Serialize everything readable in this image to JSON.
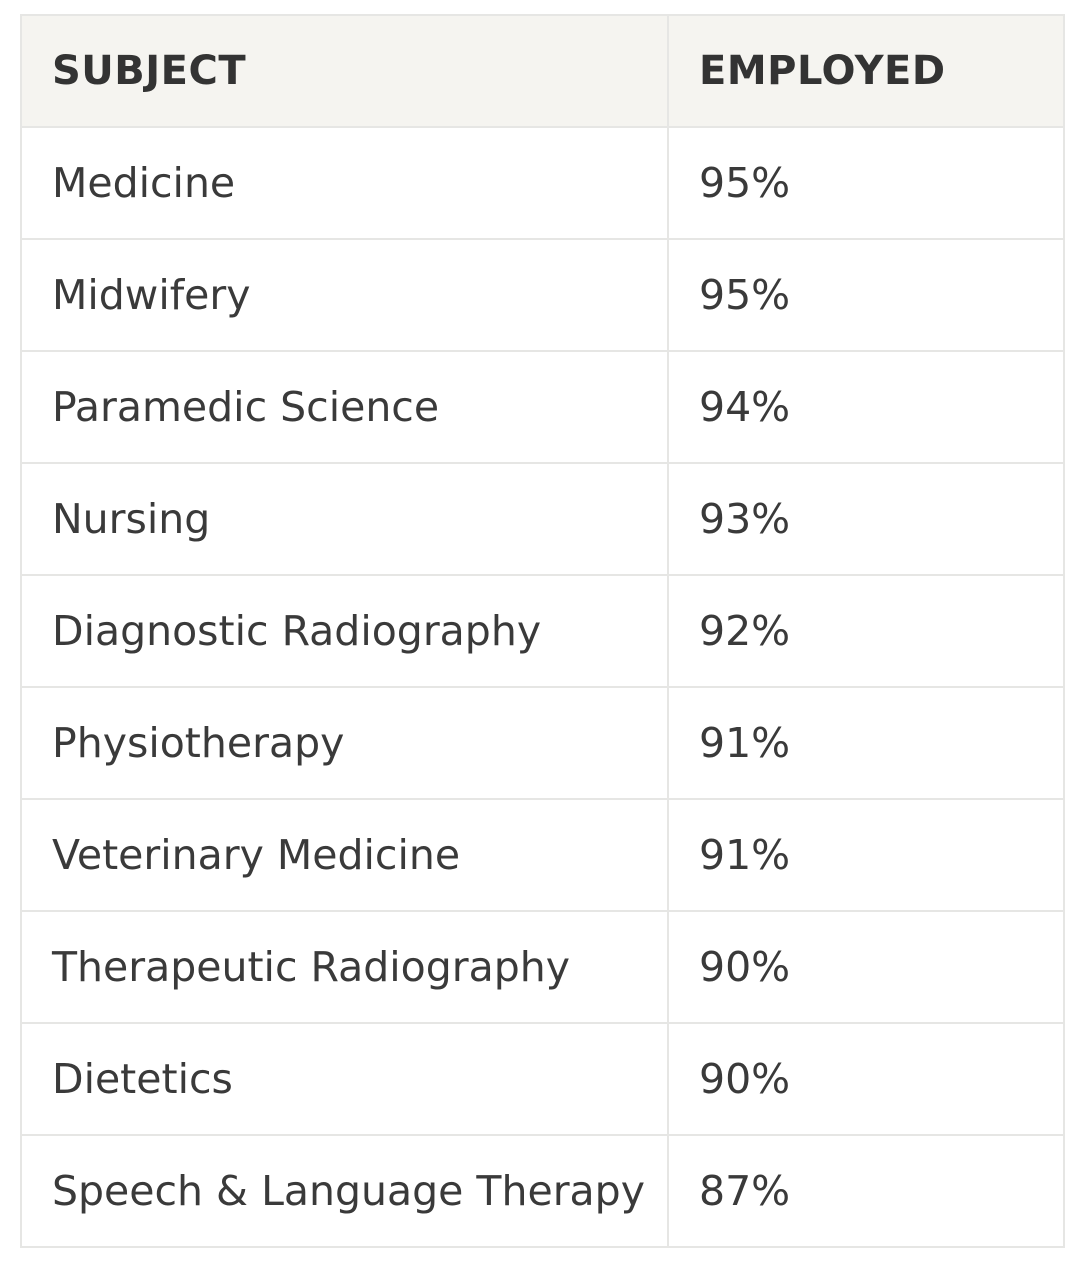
{
  "table": {
    "headers": [
      "SUBJECT",
      "EMPLOYED"
    ],
    "rows": [
      {
        "subject": "Medicine",
        "employed": "95%"
      },
      {
        "subject": "Midwifery",
        "employed": "95%"
      },
      {
        "subject": "Paramedic Science",
        "employed": "94%"
      },
      {
        "subject": "Nursing",
        "employed": "93%"
      },
      {
        "subject": "Diagnostic Radiography",
        "employed": "92%"
      },
      {
        "subject": "Physiotherapy",
        "employed": "91%"
      },
      {
        "subject": "Veterinary Medicine",
        "employed": "91%"
      },
      {
        "subject": "Therapeutic Radiography",
        "employed": "90%"
      },
      {
        "subject": "Dietetics",
        "employed": "90%"
      },
      {
        "subject": "Speech & Language Therapy",
        "employed": "87%"
      }
    ]
  }
}
